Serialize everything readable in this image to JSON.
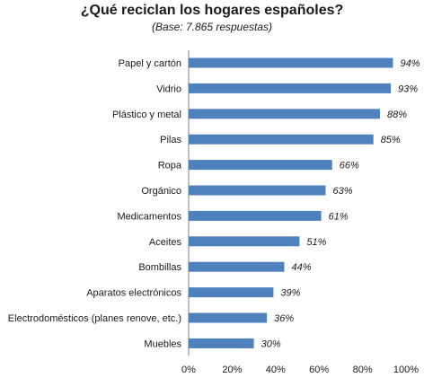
{
  "title": "¿Qué reciclan los hogares españoles?",
  "subtitle": "(Base: 7.865 respuestas)",
  "chart_data": {
    "type": "bar",
    "orientation": "horizontal",
    "categories": [
      "Papel y cartón",
      "Vidrio",
      "Plástico y metal",
      "Pilas",
      "Ropa",
      "Orgánico",
      "Medicamentos",
      "Aceites",
      "Bombillas",
      "Aparatos electrónicos",
      "Electrodomésticos (planes renove, etc.)",
      "Muebles"
    ],
    "values": [
      94,
      93,
      88,
      85,
      66,
      63,
      61,
      51,
      44,
      39,
      36,
      30
    ],
    "value_labels": [
      "94%",
      "93%",
      "88%",
      "85%",
      "66%",
      "63%",
      "61%",
      "51%",
      "44%",
      "39%",
      "36%",
      "30%"
    ],
    "xlim": [
      0,
      100
    ],
    "xticks": [
      "0%",
      "20%",
      "40%",
      "60%",
      "80%",
      "100%"
    ],
    "grid": false,
    "bar_color": "#4F81BD"
  }
}
